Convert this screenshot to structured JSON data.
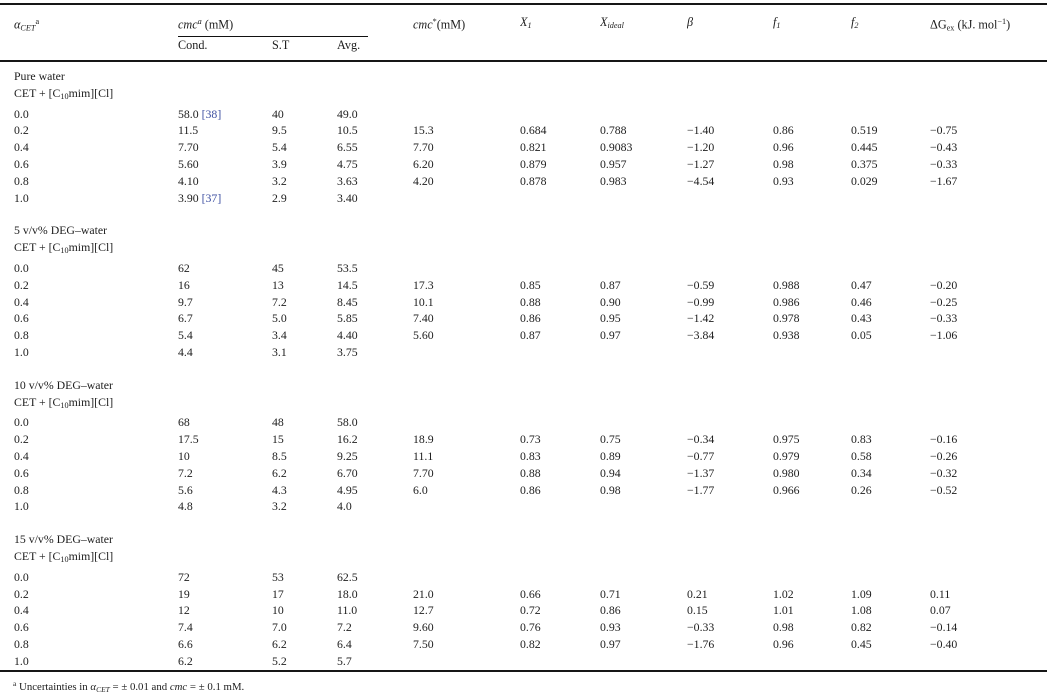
{
  "colors": {
    "text": "#1d1d1d",
    "citation": "#3d4fa1",
    "rule": "#161616",
    "background": "#ffffff"
  },
  "table": {
    "header": {
      "alpha": [
        [
          "i",
          "α"
        ],
        [
          "isub",
          "CET"
        ],
        [
          "sup",
          "a"
        ]
      ],
      "cmc_group": [
        [
          "i",
          "cmc"
        ],
        [
          "isup",
          "a"
        ],
        [
          "n",
          " (mM)"
        ]
      ],
      "sub_cond": "Cond.",
      "sub_st": "S.T",
      "sub_avg": "Avg.",
      "cmc_star": [
        [
          "i",
          "cmc"
        ],
        [
          "sup",
          "*"
        ],
        [
          "n",
          "(mM)"
        ]
      ],
      "x1": [
        [
          "i",
          "X"
        ],
        [
          "isub",
          "1"
        ]
      ],
      "x_ideal": [
        [
          "i",
          "X"
        ],
        [
          "isub",
          "ideal"
        ]
      ],
      "beta": [
        [
          "i",
          "β"
        ]
      ],
      "f1": [
        [
          "i",
          "f"
        ],
        [
          "isub",
          "1"
        ]
      ],
      "f2": [
        [
          "i",
          "f"
        ],
        [
          "isub",
          "2"
        ]
      ],
      "dg_ex": [
        [
          "n",
          "ΔG"
        ],
        [
          "sub",
          "ex"
        ],
        [
          "n",
          " (kJ. mol"
        ],
        [
          "sup",
          "−1"
        ],
        [
          "n",
          ")"
        ]
      ]
    },
    "sections": [
      {
        "title": "Pure water",
        "system": [
          [
            "n",
            "CET + [C"
          ],
          [
            "sub",
            "10"
          ],
          [
            "n",
            "mim][Cl]"
          ]
        ],
        "rows": [
          {
            "alpha": "0.0",
            "cond": "58.0 ",
            "cond_ref": "[38]",
            "st": "40",
            "avg": "49.0",
            "cmc_star": "",
            "x1": "",
            "x_ideal": "",
            "beta": "",
            "f1": "",
            "f2": "",
            "dg_ex": ""
          },
          {
            "alpha": "0.2",
            "cond": "11.5",
            "st": "9.5",
            "avg": "10.5",
            "cmc_star": "15.3",
            "x1": "0.684",
            "x_ideal": "0.788",
            "beta": "−1.40",
            "f1": "0.86",
            "f2": "0.519",
            "dg_ex": "−0.75"
          },
          {
            "alpha": "0.4",
            "cond": "7.70",
            "st": "5.4",
            "avg": "6.55",
            "cmc_star": "7.70",
            "x1": "0.821",
            "x_ideal": "0.9083",
            "beta": "−1.20",
            "f1": "0.96",
            "f2": "0.445",
            "dg_ex": "−0.43"
          },
          {
            "alpha": "0.6",
            "cond": "5.60",
            "st": "3.9",
            "avg": "4.75",
            "cmc_star": "6.20",
            "x1": "0.879",
            "x_ideal": "0.957",
            "beta": "−1.27",
            "f1": "0.98",
            "f2": "0.375",
            "dg_ex": "−0.33"
          },
          {
            "alpha": "0.8",
            "cond": "4.10",
            "st": "3.2",
            "avg": "3.63",
            "cmc_star": "4.20",
            "x1": "0.878",
            "x_ideal": "0.983",
            "beta": "−4.54",
            "f1": "0.93",
            "f2": "0.029",
            "dg_ex": "−1.67"
          },
          {
            "alpha": "1.0",
            "cond": "3.90 ",
            "cond_ref": "[37]",
            "st": "2.9",
            "avg": "3.40",
            "cmc_star": "",
            "x1": "",
            "x_ideal": "",
            "beta": "",
            "f1": "",
            "f2": "",
            "dg_ex": ""
          }
        ]
      },
      {
        "title": "5 v/v% DEG–water",
        "system": [
          [
            "n",
            "CET + [C"
          ],
          [
            "sub",
            "10"
          ],
          [
            "n",
            "mim][Cl]"
          ]
        ],
        "rows": [
          {
            "alpha": "0.0",
            "cond": "62",
            "st": "45",
            "avg": "53.5",
            "cmc_star": "",
            "x1": "",
            "x_ideal": "",
            "beta": "",
            "f1": "",
            "f2": "",
            "dg_ex": ""
          },
          {
            "alpha": "0.2",
            "cond": "16",
            "st": "13",
            "avg": "14.5",
            "cmc_star": "17.3",
            "x1": "0.85",
            "x_ideal": "0.87",
            "beta": "−0.59",
            "f1": "0.988",
            "f2": "0.47",
            "dg_ex": "−0.20"
          },
          {
            "alpha": "0.4",
            "cond": "9.7",
            "st": "7.2",
            "avg": "8.45",
            "cmc_star": "10.1",
            "x1": "0.88",
            "x_ideal": "0.90",
            "beta": "−0.99",
            "f1": "0.986",
            "f2": "0.46",
            "dg_ex": "−0.25"
          },
          {
            "alpha": "0.6",
            "cond": "6.7",
            "st": "5.0",
            "avg": "5.85",
            "cmc_star": "7.40",
            "x1": "0.86",
            "x_ideal": "0.95",
            "beta": "−1.42",
            "f1": "0.978",
            "f2": "0.43",
            "dg_ex": "−0.33"
          },
          {
            "alpha": "0.8",
            "cond": "5.4",
            "st": "3.4",
            "avg": "4.40",
            "cmc_star": "5.60",
            "x1": "0.87",
            "x_ideal": "0.97",
            "beta": "−3.84",
            "f1": "0.938",
            "f2": "0.05",
            "dg_ex": "−1.06"
          },
          {
            "alpha": "1.0",
            "cond": "4.4",
            "st": "3.1",
            "avg": "3.75",
            "cmc_star": "",
            "x1": "",
            "x_ideal": "",
            "beta": "",
            "f1": "",
            "f2": "",
            "dg_ex": ""
          }
        ]
      },
      {
        "title": "10 v/v% DEG–water",
        "system": [
          [
            "n",
            "CET + [C"
          ],
          [
            "sub",
            "10"
          ],
          [
            "n",
            "mim][Cl]"
          ]
        ],
        "rows": [
          {
            "alpha": "0.0",
            "cond": "68",
            "st": "48",
            "avg": "58.0",
            "cmc_star": "",
            "x1": "",
            "x_ideal": "",
            "beta": "",
            "f1": "",
            "f2": "",
            "dg_ex": ""
          },
          {
            "alpha": "0.2",
            "cond": "17.5",
            "st": "15",
            "avg": "16.2",
            "cmc_star": "18.9",
            "x1": "0.73",
            "x_ideal": "0.75",
            "beta": "−0.34",
            "f1": "0.975",
            "f2": "0.83",
            "dg_ex": "−0.16"
          },
          {
            "alpha": "0.4",
            "cond": "10",
            "st": "8.5",
            "avg": "9.25",
            "cmc_star": "11.1",
            "x1": "0.83",
            "x_ideal": "0.89",
            "beta": "−0.77",
            "f1": "0.979",
            "f2": "0.58",
            "dg_ex": "−0.26"
          },
          {
            "alpha": "0.6",
            "cond": "7.2",
            "st": "6.2",
            "avg": "6.70",
            "cmc_star": "7.70",
            "x1": "0.88",
            "x_ideal": "0.94",
            "beta": "−1.37",
            "f1": "0.980",
            "f2": "0.34",
            "dg_ex": "−0.32"
          },
          {
            "alpha": "0.8",
            "cond": "5.6",
            "st": "4.3",
            "avg": "4.95",
            "cmc_star": "6.0",
            "x1": "0.86",
            "x_ideal": "0.98",
            "beta": "−1.77",
            "f1": "0.966",
            "f2": "0.26",
            "dg_ex": "−0.52"
          },
          {
            "alpha": "1.0",
            "cond": "4.8",
            "st": "3.2",
            "avg": "4.0",
            "cmc_star": "",
            "x1": "",
            "x_ideal": "",
            "beta": "",
            "f1": "",
            "f2": "",
            "dg_ex": ""
          }
        ]
      },
      {
        "title": "15 v/v% DEG–water",
        "system": [
          [
            "n",
            "CET + [C"
          ],
          [
            "sub",
            "10"
          ],
          [
            "n",
            "mim][Cl]"
          ]
        ],
        "rows": [
          {
            "alpha": "0.0",
            "cond": "72",
            "st": "53",
            "avg": "62.5",
            "cmc_star": "",
            "x1": "",
            "x_ideal": "",
            "beta": "",
            "f1": "",
            "f2": "",
            "dg_ex": ""
          },
          {
            "alpha": "0.2",
            "cond": "19",
            "st": "17",
            "avg": "18.0",
            "cmc_star": "21.0",
            "x1": "0.66",
            "x_ideal": "0.71",
            "beta": "0.21",
            "f1": "1.02",
            "f2": "1.09",
            "dg_ex": "0.11"
          },
          {
            "alpha": "0.4",
            "cond": "12",
            "st": "10",
            "avg": "11.0",
            "cmc_star": "12.7",
            "x1": "0.72",
            "x_ideal": "0.86",
            "beta": "0.15",
            "f1": "1.01",
            "f2": "1.08",
            "dg_ex": "0.07"
          },
          {
            "alpha": "0.6",
            "cond": "7.4",
            "st": "7.0",
            "avg": "7.2",
            "cmc_star": "9.60",
            "x1": "0.76",
            "x_ideal": "0.93",
            "beta": "−0.33",
            "f1": "0.98",
            "f2": "0.82",
            "dg_ex": "−0.14"
          },
          {
            "alpha": "0.8",
            "cond": "6.6",
            "st": "6.2",
            "avg": "6.4",
            "cmc_star": "7.50",
            "x1": "0.82",
            "x_ideal": "0.97",
            "beta": "−1.76",
            "f1": "0.96",
            "f2": "0.45",
            "dg_ex": "−0.40"
          },
          {
            "alpha": "1.0",
            "cond": "6.2",
            "st": "5.2",
            "avg": "5.7",
            "cmc_star": "",
            "x1": "",
            "x_ideal": "",
            "beta": "",
            "f1": "",
            "f2": "",
            "dg_ex": ""
          }
        ]
      }
    ],
    "footnote": [
      [
        "sup",
        "a"
      ],
      [
        "n",
        "  Uncertainties in "
      ],
      [
        "i",
        "α"
      ],
      [
        "isub",
        "CET"
      ],
      [
        "n",
        " = ± 0.01 and "
      ],
      [
        "i",
        "cmc"
      ],
      [
        "n",
        " = ± 0.1 mM."
      ]
    ]
  }
}
